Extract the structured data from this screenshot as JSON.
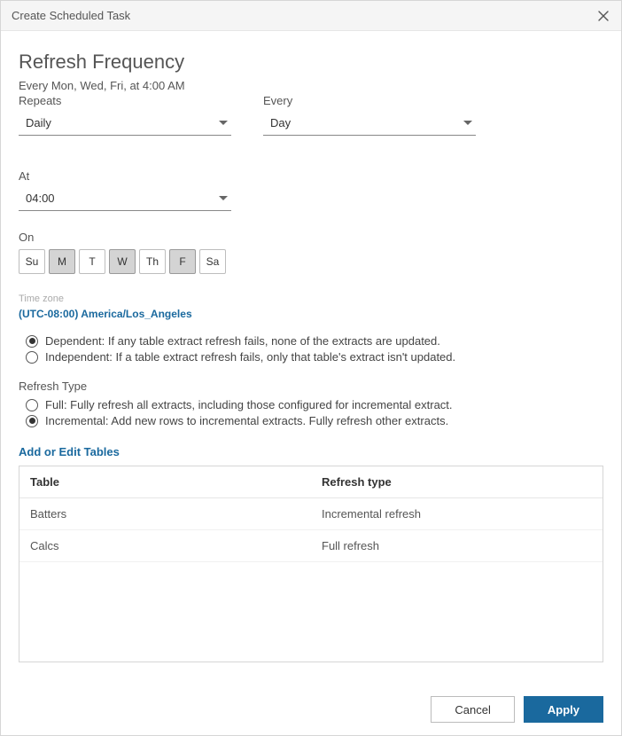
{
  "titlebar": {
    "title": "Create Scheduled Task"
  },
  "section_title": "Refresh Frequency",
  "summary": "Every Mon, Wed, Fri, at 4:00 AM",
  "repeats": {
    "label": "Repeats",
    "value": "Daily"
  },
  "every": {
    "label": "Every",
    "value": "Day"
  },
  "at": {
    "label": "At",
    "value": "04:00"
  },
  "on": {
    "label": "On",
    "days": [
      {
        "abbr": "Su",
        "selected": false
      },
      {
        "abbr": "M",
        "selected": true
      },
      {
        "abbr": "T",
        "selected": false
      },
      {
        "abbr": "W",
        "selected": true
      },
      {
        "abbr": "Th",
        "selected": false
      },
      {
        "abbr": "F",
        "selected": true
      },
      {
        "abbr": "Sa",
        "selected": false
      }
    ]
  },
  "timezone": {
    "label": "Time zone",
    "value": "(UTC-08:00) America/Los_Angeles"
  },
  "dependency": {
    "options": [
      {
        "label": "Dependent: If any table extract refresh fails, none of the extracts are updated.",
        "checked": true
      },
      {
        "label": "Independent: If a table extract refresh fails, only that table's extract isn't updated.",
        "checked": false
      }
    ]
  },
  "refresh_type": {
    "label": "Refresh Type",
    "options": [
      {
        "label": "Full: Fully refresh all extracts, including those configured for incremental extract.",
        "checked": false
      },
      {
        "label": "Incremental: Add new rows to incremental extracts. Fully refresh other extracts.",
        "checked": true
      }
    ]
  },
  "tables_link": "Add or Edit Tables",
  "table": {
    "columns": [
      "Table",
      "Refresh type"
    ],
    "rows": [
      [
        "Batters",
        "Incremental refresh"
      ],
      [
        "Calcs",
        "Full refresh"
      ]
    ],
    "col_widths": [
      "50%",
      "50%"
    ]
  },
  "footer": {
    "cancel": "Cancel",
    "apply": "Apply"
  },
  "colors": {
    "accent": "#1a699e",
    "border": "#d6d6d6",
    "text_muted": "#555"
  }
}
